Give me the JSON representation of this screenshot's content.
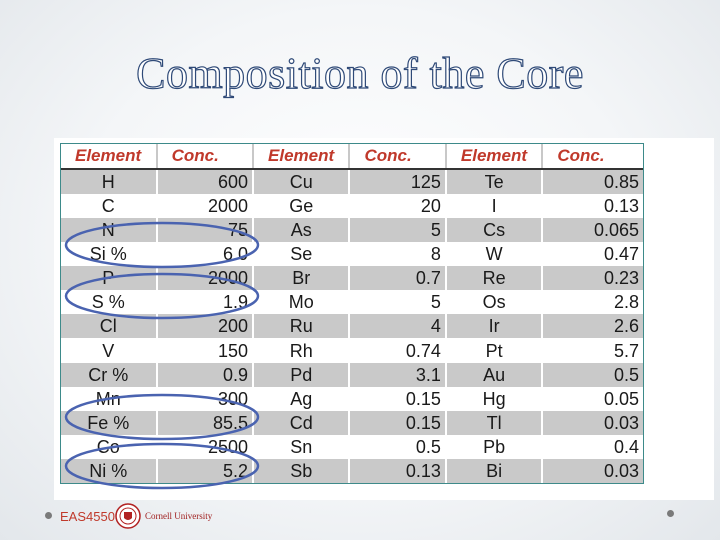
{
  "slide": {
    "title": "Composition of the Core"
  },
  "table": {
    "headers": [
      "Element",
      "Conc.",
      "Element",
      "Conc.",
      "Element",
      "Conc."
    ],
    "rows": [
      [
        "H",
        "600",
        "Cu",
        "125",
        "Te",
        "0.85"
      ],
      [
        "C",
        "2000",
        "Ge",
        "20",
        "I",
        "0.13"
      ],
      [
        "N",
        "75",
        "As",
        "5",
        "Cs",
        "0.065"
      ],
      [
        "Si %",
        "6.0",
        "Se",
        "8",
        "W",
        "0.47"
      ],
      [
        "P",
        "2000",
        "Br",
        "0.7",
        "Re",
        "0.23"
      ],
      [
        "S %",
        "1.9",
        "Mo",
        "5",
        "Os",
        "2.8"
      ],
      [
        "Cl",
        "200",
        "Ru",
        "4",
        "Ir",
        "2.6"
      ],
      [
        "V",
        "150",
        "Rh",
        "0.74",
        "Pt",
        "5.7"
      ],
      [
        "Cr %",
        "0.9",
        "Pd",
        "3.1",
        "Au",
        "0.5"
      ],
      [
        "Mn",
        "300",
        "Ag",
        "0.15",
        "Hg",
        "0.05"
      ],
      [
        "Fe %",
        "85.5",
        "Cd",
        "0.15",
        "Tl",
        "0.03"
      ],
      [
        "Co",
        "2500",
        "Sn",
        "0.5",
        "Pb",
        "0.4"
      ],
      [
        "Ni %",
        "5.2",
        "Sb",
        "0.13",
        "Bi",
        "0.03"
      ]
    ],
    "circled_rows": [
      "Si %",
      "S %",
      "Fe %",
      "Ni %"
    ]
  },
  "footer": {
    "course": "EAS4550",
    "university": "Cornell University"
  },
  "colors": {
    "title_outline": "#2f4a78",
    "header_text": "#c0392b",
    "row_shade": "#c9c9c9",
    "circle": "#4a63b0"
  }
}
